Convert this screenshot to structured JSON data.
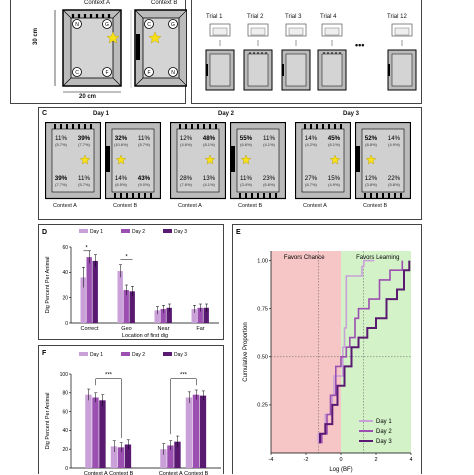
{
  "panelA": {
    "context_a": "Context A",
    "context_b": "Context B",
    "corner_a": [
      "N",
      "G",
      "C",
      "F"
    ],
    "corner_b": [
      "C",
      "G",
      "F",
      "N"
    ],
    "size_v": "30 cm",
    "size_h": "20 cm"
  },
  "panelB": {
    "trials": [
      "Trial 1",
      "Trial 2",
      "Trial 3",
      "Trial 4",
      "Trial 12"
    ],
    "ellipsis": "•••"
  },
  "panelC": {
    "letter": "C",
    "days": [
      {
        "label": "Day 1",
        "a": {
          "tl": "11%",
          "tl_sub": "(5.7%)",
          "tr": "39%",
          "tr_sub": "(7.7%)",
          "bl": "39%",
          "bl_sub": "(7.7%)",
          "br": "11%",
          "br_sub": "(5.7%)"
        },
        "b": {
          "tl": "32%",
          "tl_sub": "(10.6%)",
          "tr": "11%",
          "tr_sub": "(5.7%)",
          "bl": "14%",
          "bl_sub": "(6.5%)",
          "br": "43%",
          "br_sub": "(9.0%)"
        }
      },
      {
        "label": "Day 2",
        "a": {
          "tl": "12%",
          "tl_sub": "(4.6%)",
          "tr": "48%",
          "tr_sub": "(8.1%)",
          "bl": "28%",
          "bl_sub": "(7.6%)",
          "br": "13%",
          "br_sub": "(4.1%)"
        },
        "b": {
          "tl": "55%",
          "tl_sub": "(6.6%)",
          "tr": "11%",
          "tr_sub": "(4.1%)",
          "bl": "11%",
          "bl_sub": "(3.4%)",
          "br": "23%",
          "br_sub": "(6.6%)"
        }
      },
      {
        "label": "Day 3",
        "a": {
          "tl": "14%",
          "tl_sub": "(4.2%)",
          "tr": "45%",
          "tr_sub": "(6.1%)",
          "bl": "27%",
          "bl_sub": "(6.7%)",
          "br": "15%",
          "br_sub": "(4.9%)"
        },
        "b": {
          "tl": "52%",
          "tl_sub": "(8.8%)",
          "tr": "14%",
          "tr_sub": "(4.9%)",
          "bl": "12%",
          "bl_sub": "(3.8%)",
          "br": "22%",
          "br_sub": "(5.8%)"
        }
      }
    ],
    "context_a": "Context A",
    "context_b": "Context B"
  },
  "colors": {
    "day1": "#c9a0d8",
    "day2": "#9b4fb0",
    "day3": "#5a1a72",
    "red_zone": "#f6c6c6",
    "green_zone": "#d3f2c8"
  },
  "chart_data": [
    {
      "panel": "D",
      "type": "bar",
      "categories": [
        "Correct",
        "Geo",
        "Near",
        "Far"
      ],
      "series": [
        {
          "name": "Day 1",
          "values": [
            36,
            41,
            10,
            11
          ]
        },
        {
          "name": "Day 2",
          "values": [
            52,
            26,
            11,
            12
          ]
        },
        {
          "name": "Day 3",
          "values": [
            49,
            25,
            12,
            12
          ]
        }
      ],
      "errors": [
        [
          8,
          5,
          3,
          3
        ],
        [
          5,
          4,
          3,
          3
        ],
        [
          5,
          4,
          3,
          3
        ]
      ],
      "ylabel": "Dig Percent Per Animal",
      "xlabel": "Location of first dig",
      "ylim": [
        0,
        60
      ],
      "yticks": [
        0,
        20,
        40,
        60
      ],
      "sig": [
        "*",
        "*"
      ]
    },
    {
      "panel": "F",
      "type": "bar",
      "categories": [
        "Context A",
        "Context B",
        "Context A",
        "Context B"
      ],
      "series": [
        {
          "name": "Day 1",
          "values": [
            78,
            23,
            20,
            75
          ]
        },
        {
          "name": "Day 2",
          "values": [
            75,
            22,
            24,
            78
          ]
        },
        {
          "name": "Day 3",
          "values": [
            72,
            25,
            28,
            77
          ]
        }
      ],
      "errors": [
        [
          6,
          6,
          6,
          6
        ],
        [
          5,
          5,
          5,
          5
        ],
        [
          6,
          5,
          6,
          5
        ]
      ],
      "ylabel": "Dig Percent Per Animal",
      "ylim": [
        0,
        100
      ],
      "yticks": [
        0,
        20,
        40,
        60,
        80,
        100
      ],
      "sig": [
        "***",
        "***"
      ]
    },
    {
      "panel": "E",
      "type": "line",
      "xlabel": "Log (BF)",
      "ylabel": "Cumulative Proportion",
      "xlim": [
        -4,
        4
      ],
      "ylim": [
        0,
        1.05
      ],
      "xticks": [
        -4,
        -2,
        0,
        2,
        4
      ],
      "yticks": [
        0.25,
        0.5,
        0.75,
        1.0
      ],
      "zones": [
        "Favors Chance",
        "Favors Learning"
      ],
      "series": [
        {
          "name": "Day 1",
          "x": [
            -1.3,
            -0.9,
            -0.9,
            -0.5,
            -0.4,
            0.1,
            0.1,
            0.2,
            0.3,
            1.2,
            1.3,
            1.3,
            1.9
          ],
          "y": [
            0.1,
            0.15,
            0.2,
            0.3,
            0.4,
            0.5,
            0.55,
            0.65,
            0.92,
            0.97,
            0.97,
            1.0,
            1.0
          ]
        },
        {
          "name": "Day 2",
          "x": [
            -1.1,
            -0.8,
            -0.6,
            -0.3,
            0.0,
            0.3,
            0.5,
            0.8,
            1.0,
            1.6,
            2.2,
            2.8,
            3.5
          ],
          "y": [
            0.1,
            0.2,
            0.3,
            0.45,
            0.5,
            0.55,
            0.6,
            0.7,
            0.75,
            0.8,
            0.9,
            0.95,
            1.0
          ]
        },
        {
          "name": "Day 3",
          "x": [
            -1.2,
            -0.9,
            -0.5,
            -0.2,
            0.2,
            0.6,
            1.0,
            1.5,
            2.0,
            2.6,
            3.2,
            3.6,
            3.9
          ],
          "y": [
            0.1,
            0.15,
            0.25,
            0.35,
            0.45,
            0.55,
            0.6,
            0.65,
            0.7,
            0.8,
            0.85,
            0.95,
            1.0
          ]
        }
      ]
    }
  ]
}
